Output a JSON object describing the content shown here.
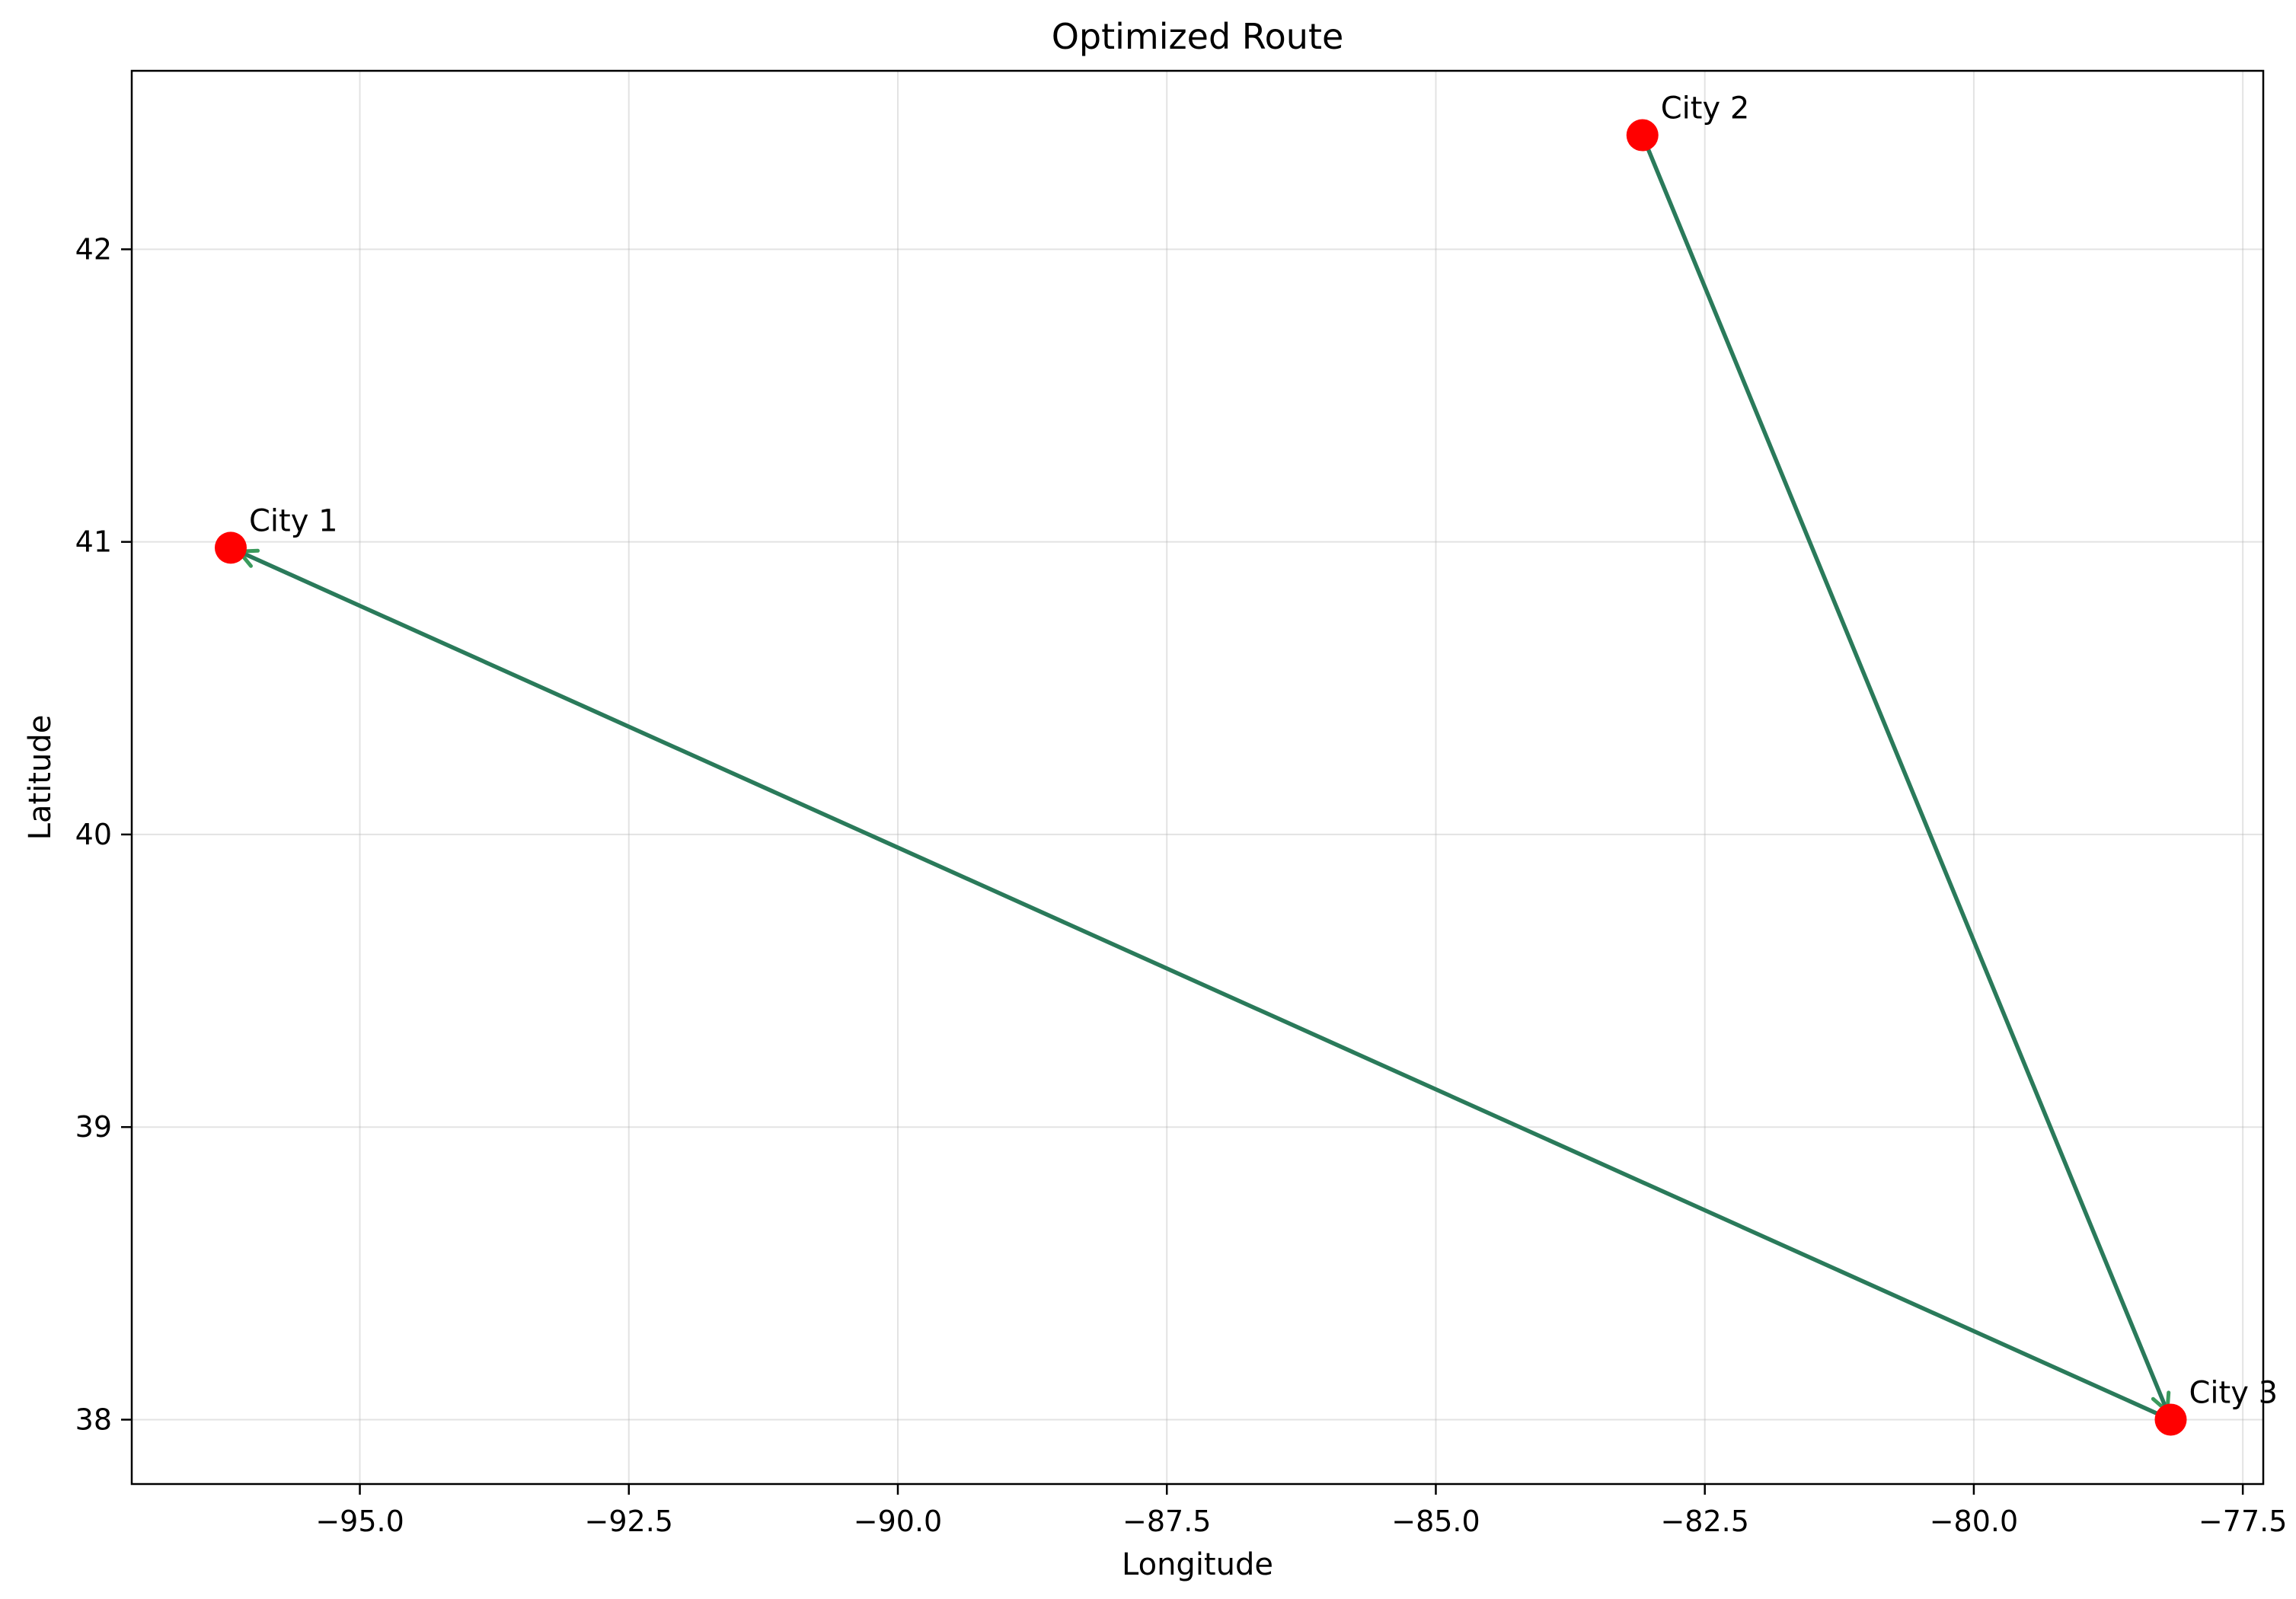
{
  "chart_data": {
    "type": "scatter",
    "title": "Optimized Route",
    "xlabel": "Longitude",
    "ylabel": "Latitude",
    "xlim": [
      -97.12,
      -77.31
    ],
    "ylim": [
      37.78,
      42.61
    ],
    "xticks": [
      -95.0,
      -92.5,
      -90.0,
      -87.5,
      -85.0,
      -82.5,
      -80.0,
      -77.5
    ],
    "xtick_labels": [
      "−95.0",
      "−92.5",
      "−90.0",
      "−87.5",
      "−85.0",
      "−82.5",
      "−80.0",
      "−77.5"
    ],
    "yticks": [
      38,
      39,
      40,
      41,
      42
    ],
    "ytick_labels": [
      "38",
      "39",
      "40",
      "41",
      "42"
    ],
    "grid": true,
    "points": [
      {
        "label": "City 1",
        "x": -96.2,
        "y": 40.98
      },
      {
        "label": "City 2",
        "x": -83.08,
        "y": 42.39
      },
      {
        "label": "City 3",
        "x": -78.17,
        "y": 38.0
      }
    ],
    "route": [
      {
        "from": "City 2",
        "to": "City 3"
      },
      {
        "from": "City 3",
        "to": "City 1"
      }
    ],
    "colors": {
      "point": "#ff0000",
      "route": "#2a7a5a",
      "arrowhead": "#3a9a5c"
    }
  }
}
